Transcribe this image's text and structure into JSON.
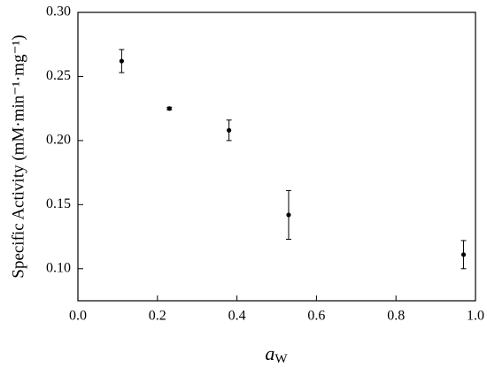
{
  "chart_data": {
    "type": "scatter",
    "x_label": {
      "symbol": "a",
      "subscript": "W"
    },
    "y_label": "Specific Activity (mM·min⁻¹·mg⁻¹)",
    "x": [
      0.11,
      0.23,
      0.38,
      0.53,
      0.97
    ],
    "values": [
      0.262,
      0.225,
      0.208,
      0.142,
      0.111
    ],
    "errors": [
      0.009,
      0.001,
      0.008,
      0.019,
      0.011
    ],
    "color": "#000000",
    "xlim": [
      0,
      1
    ],
    "ylim": [
      0.075,
      0.3
    ],
    "xticks": [
      {
        "value": 0,
        "label": "0.0"
      },
      0.2,
      0.4,
      0.6,
      0.8,
      {
        "value": 1,
        "label": "1.0"
      }
    ],
    "yticks": [
      {
        "value": 0.1,
        "label": "0.10"
      },
      0.15,
      {
        "value": 0.2,
        "label": "0.20"
      },
      0.25,
      {
        "value": 0.3,
        "label": "0.30"
      }
    ]
  }
}
